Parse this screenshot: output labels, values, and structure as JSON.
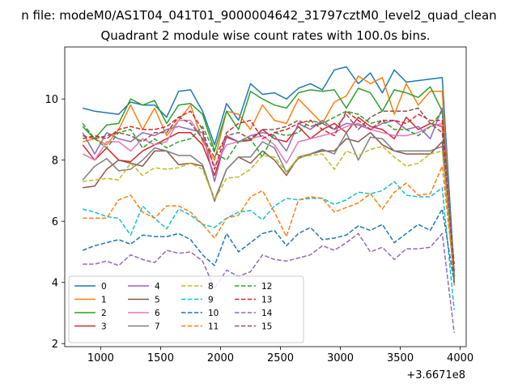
{
  "chart_data": {
    "type": "line",
    "suptitle": "n file: modeM0/AS1T04_041T01_9000004642_31797cztM0_level2_quad_clean",
    "title": "Quadrant 2 module wise count rates with 100.0s bins.",
    "xlabel": "",
    "ylabel": "",
    "offset_text": "+3.6671e8",
    "xlim": [
      700,
      4050
    ],
    "ylim": [
      1.9,
      11.7
    ],
    "xticks": [
      1000,
      1500,
      2000,
      2500,
      3000,
      3500,
      4000
    ],
    "xtick_labels": [
      "1000",
      "1500",
      "2000",
      "2500",
      "3000",
      "3500",
      "4000"
    ],
    "yticks": [
      2,
      4,
      6,
      8,
      10
    ],
    "ytick_labels": [
      "2",
      "4",
      "6",
      "8",
      "10"
    ],
    "grid": false,
    "legend_position": "lower-left",
    "legend_columns": 4,
    "x": [
      850,
      950,
      1050,
      1150,
      1250,
      1350,
      1450,
      1550,
      1650,
      1750,
      1850,
      1950,
      2050,
      2150,
      2250,
      2350,
      2450,
      2550,
      2650,
      2750,
      2850,
      2950,
      3050,
      3150,
      3250,
      3350,
      3450,
      3550,
      3650,
      3750,
      3850,
      3950
    ],
    "series": [
      {
        "name": "0",
        "color": "#1f77b4",
        "style": "solid",
        "values": [
          9.7,
          9.6,
          9.55,
          9.5,
          9.9,
          9.8,
          9.8,
          9.4,
          10.25,
          10.3,
          9.6,
          8.5,
          9.85,
          9.3,
          10.5,
          10.15,
          10.2,
          10.0,
          10.35,
          10.5,
          10.3,
          10.95,
          11.05,
          10.5,
          10.85,
          10.2,
          10.95,
          10.55,
          10.6,
          10.65,
          10.7,
          4.3
        ]
      },
      {
        "name": "1",
        "color": "#ff7f0e",
        "style": "solid",
        "values": [
          8.6,
          8.7,
          8.5,
          9.0,
          9.8,
          9.0,
          9.7,
          8.8,
          9.3,
          9.8,
          8.6,
          8.0,
          9.6,
          9.5,
          9.0,
          9.8,
          9.3,
          9.2,
          10.0,
          9.6,
          9.2,
          9.9,
          10.1,
          10.75,
          10.5,
          10.7,
          9.5,
          10.5,
          9.8,
          10.25,
          10.25,
          3.9
        ]
      },
      {
        "name": "2",
        "color": "#2ca02c",
        "style": "solid",
        "values": [
          9.1,
          8.7,
          9.15,
          9.2,
          10.0,
          9.8,
          9.95,
          9.2,
          9.8,
          9.85,
          9.5,
          8.3,
          9.6,
          9.0,
          10.25,
          10.0,
          9.8,
          9.7,
          10.2,
          10.3,
          10.25,
          10.3,
          9.7,
          10.35,
          10.2,
          9.6,
          10.3,
          10.2,
          10.05,
          10.4,
          9.6,
          4.2
        ]
      },
      {
        "name": "3",
        "color": "#d62728",
        "style": "solid",
        "values": [
          8.5,
          8.0,
          8.4,
          8.0,
          7.95,
          8.3,
          8.5,
          8.7,
          8.9,
          8.9,
          8.5,
          7.5,
          8.75,
          8.6,
          8.65,
          9.0,
          8.7,
          8.6,
          9.1,
          8.7,
          9.0,
          9.2,
          8.9,
          9.4,
          9.1,
          9.0,
          8.7,
          9.4,
          9.0,
          9.2,
          9.1,
          4.0
        ]
      },
      {
        "name": "4",
        "color": "#9467bd",
        "style": "solid",
        "values": [
          8.9,
          8.2,
          8.9,
          8.7,
          8.6,
          8.9,
          8.8,
          9.0,
          9.1,
          9.0,
          8.9,
          7.3,
          8.8,
          8.6,
          8.8,
          8.9,
          8.8,
          8.3,
          9.2,
          9.0,
          9.3,
          9.0,
          9.2,
          9.15,
          9.0,
          9.2,
          9.3,
          9.0,
          9.1,
          8.7,
          9.7,
          4.1
        ]
      },
      {
        "name": "5",
        "color": "#8c564b",
        "style": "solid",
        "values": [
          7.1,
          7.15,
          7.7,
          8.0,
          7.9,
          7.8,
          8.3,
          8.3,
          7.85,
          7.9,
          7.8,
          6.7,
          7.7,
          8.1,
          7.9,
          8.3,
          8.0,
          7.5,
          8.1,
          8.2,
          8.3,
          8.3,
          8.7,
          8.6,
          8.9,
          8.5,
          8.3,
          8.2,
          8.2,
          8.2,
          8.6,
          4.0
        ]
      },
      {
        "name": "6",
        "color": "#e377c2",
        "style": "solid",
        "values": [
          8.2,
          8.0,
          8.6,
          8.6,
          8.3,
          8.7,
          8.5,
          8.6,
          9.3,
          9.3,
          8.7,
          7.8,
          8.5,
          8.6,
          8.7,
          8.8,
          8.5,
          7.9,
          8.6,
          8.7,
          8.8,
          8.9,
          9.1,
          9.2,
          9.0,
          8.9,
          8.8,
          8.8,
          8.9,
          9.1,
          9.2,
          4.0
        ]
      },
      {
        "name": "7",
        "color": "#7f7f7f",
        "style": "solid",
        "values": [
          7.35,
          7.8,
          8.05,
          7.65,
          7.7,
          8.0,
          8.4,
          8.3,
          8.15,
          8.15,
          7.85,
          6.65,
          7.7,
          8.1,
          8.1,
          8.6,
          8.4,
          7.6,
          8.05,
          8.2,
          8.35,
          8.2,
          8.9,
          8.0,
          8.75,
          8.7,
          8.3,
          8.3,
          8.3,
          8.3,
          8.45,
          4.1
        ]
      },
      {
        "name": "8",
        "color": "#bcbd22",
        "style": "dashed",
        "values": [
          7.3,
          7.35,
          7.4,
          7.35,
          7.9,
          7.5,
          7.75,
          7.7,
          7.75,
          7.9,
          7.7,
          6.7,
          7.4,
          7.45,
          7.7,
          8.15,
          8.1,
          7.6,
          8.1,
          8.15,
          8.2,
          7.7,
          8.3,
          8.15,
          8.35,
          8.45,
          8.1,
          7.8,
          7.9,
          8.2,
          8.3,
          4.2
        ]
      },
      {
        "name": "9",
        "color": "#17becf",
        "style": "dashed",
        "values": [
          6.4,
          6.3,
          6.15,
          6.1,
          5.55,
          6.5,
          6.1,
          5.75,
          6.4,
          6.2,
          5.9,
          5.8,
          6.1,
          6.3,
          6.35,
          6.05,
          6.5,
          6.75,
          6.7,
          6.75,
          6.75,
          6.55,
          6.7,
          6.95,
          6.9,
          7.0,
          7.3,
          6.85,
          6.8,
          6.8,
          7.1,
          3.1
        ]
      },
      {
        "name": "10",
        "color": "#1f77b4",
        "style": "dashed",
        "values": [
          5.05,
          5.2,
          5.3,
          5.4,
          5.25,
          5.55,
          5.5,
          5.5,
          5.6,
          5.4,
          4.9,
          4.55,
          5.6,
          5.0,
          5.3,
          5.6,
          5.7,
          5.2,
          5.6,
          5.8,
          5.4,
          5.45,
          5.55,
          5.85,
          5.7,
          5.9,
          5.3,
          5.6,
          5.9,
          5.7,
          6.4,
          4.0
        ]
      },
      {
        "name": "11",
        "color": "#ff7f0e",
        "style": "dashed",
        "values": [
          6.1,
          6.1,
          6.1,
          6.7,
          6.85,
          6.3,
          6.1,
          6.5,
          6.5,
          6.3,
          5.9,
          5.45,
          6.1,
          6.2,
          6.8,
          7.0,
          6.3,
          5.5,
          6.7,
          6.8,
          6.75,
          6.3,
          6.45,
          6.6,
          6.9,
          6.4,
          6.95,
          7.25,
          6.85,
          6.9,
          7.8,
          4.2
        ]
      },
      {
        "name": "12",
        "color": "#2ca02c",
        "style": "dashed",
        "values": [
          9.2,
          8.7,
          8.4,
          8.9,
          9.0,
          8.4,
          8.7,
          8.4,
          8.6,
          8.7,
          9.1,
          8.25,
          8.0,
          8.6,
          8.7,
          8.1,
          8.9,
          8.8,
          8.9,
          9.3,
          9.2,
          9.4,
          9.6,
          9.5,
          9.2,
          9.3,
          9.0,
          9.0,
          8.8,
          9.1,
          9.6,
          4.1
        ]
      },
      {
        "name": "13",
        "color": "#d62728",
        "style": "dashed",
        "values": [
          8.7,
          8.8,
          8.7,
          9.0,
          9.1,
          9.0,
          9.0,
          9.1,
          9.4,
          9.6,
          9.0,
          7.7,
          8.9,
          9.2,
          9.3,
          8.7,
          8.9,
          9.0,
          9.2,
          9.3,
          9.0,
          8.8,
          9.6,
          9.3,
          9.0,
          9.3,
          9.3,
          9.2,
          9.5,
          9.3,
          9.3,
          4.3
        ]
      },
      {
        "name": "14",
        "color": "#9467bd",
        "style": "dashed",
        "values": [
          4.6,
          4.6,
          4.7,
          4.55,
          4.9,
          4.75,
          4.65,
          5.05,
          4.95,
          5.0,
          4.7,
          3.8,
          4.4,
          4.2,
          4.35,
          4.9,
          4.75,
          4.7,
          4.8,
          4.9,
          5.2,
          5.05,
          5.3,
          5.6,
          5.0,
          5.15,
          4.75,
          5.1,
          5.1,
          5.15,
          5.6,
          2.35
        ]
      },
      {
        "name": "15",
        "color": "#8c564b",
        "style": "dashed",
        "values": [
          8.8,
          8.7,
          8.8,
          8.9,
          8.8,
          8.6,
          8.9,
          8.9,
          9.4,
          9.2,
          8.7,
          8.1,
          8.8,
          8.9,
          8.7,
          9.0,
          9.0,
          9.1,
          9.3,
          9.1,
          9.2,
          9.0,
          9.5,
          9.0,
          9.4,
          9.6,
          9.6,
          9.6,
          9.7,
          9.2,
          8.9,
          4.6
        ]
      }
    ]
  }
}
